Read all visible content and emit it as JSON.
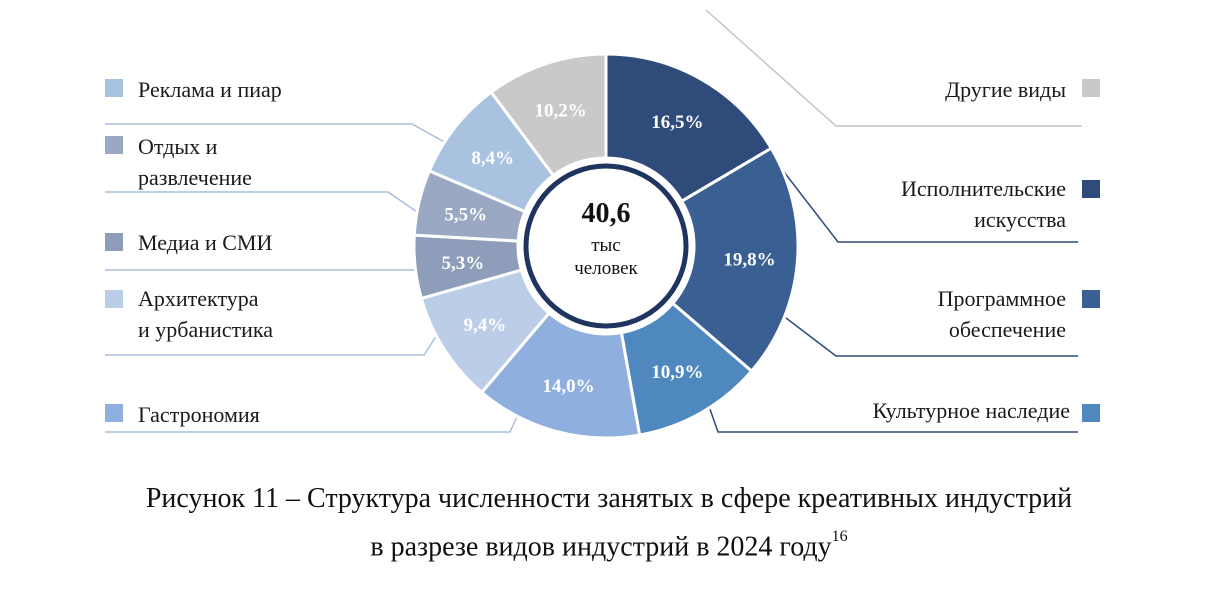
{
  "chart_data": {
    "type": "pie",
    "title": "",
    "center": {
      "value": "40,6",
      "unit_line1": "тыс",
      "unit_line2": "человек"
    },
    "slices": [
      {
        "name": "Исполнительские искусства",
        "label_lines": [
          "Исполнительские",
          "искусства"
        ],
        "value": 16.5,
        "display": "16,5%",
        "color": "#2e4b7a",
        "text_color": "#ffffff"
      },
      {
        "name": "Программное обеспечение",
        "label_lines": [
          "Программное",
          "обеспечение"
        ],
        "value": 19.8,
        "display": "19,8%",
        "color": "#3a5f92",
        "text_color": "#ffffff"
      },
      {
        "name": "Культурное наследие",
        "label_lines": [
          "Культурное наследие"
        ],
        "value": 10.9,
        "display": "10,9%",
        "color": "#4f88bf",
        "text_color": "#ffffff"
      },
      {
        "name": "Гастрономия",
        "label_lines": [
          "Гастрономия"
        ],
        "value": 14.0,
        "display": "14,0%",
        "color": "#8fb0df",
        "text_color": "#ffffff"
      },
      {
        "name": "Архитектура и урбанистика",
        "label_lines": [
          "Архитектура",
          "и урбанистика"
        ],
        "value": 9.4,
        "display": "9,4%",
        "color": "#bccde7",
        "text_color": "#ffffff"
      },
      {
        "name": "Медиа и СМИ",
        "label_lines": [
          "Медиа и СМИ"
        ],
        "value": 5.3,
        "display": "5,3%",
        "color": "#8e9db9",
        "text_color": "#ffffff"
      },
      {
        "name": "Отдых и развлечение",
        "label_lines": [
          "Отдых и",
          "развлечение"
        ],
        "value": 5.5,
        "display": "5,5%",
        "color": "#9aa8c3",
        "text_color": "#ffffff"
      },
      {
        "name": "Реклама и пиар",
        "label_lines": [
          "Реклама и пиар"
        ],
        "value": 8.4,
        "display": "8,4%",
        "color": "#a8c2e0",
        "text_color": "#ffffff"
      },
      {
        "name": "Другие виды",
        "label_lines": [
          "Другие виды"
        ],
        "value": 10.2,
        "display": "10,2%",
        "color": "#c9c9c9",
        "text_color": "#ffffff"
      }
    ]
  },
  "caption": {
    "line1": "Рисунок 11 – Структура численности занятых в сфере креативных индустрий",
    "line2": "в разрезе видов индустрий в 2024 году",
    "footnote": "16"
  }
}
